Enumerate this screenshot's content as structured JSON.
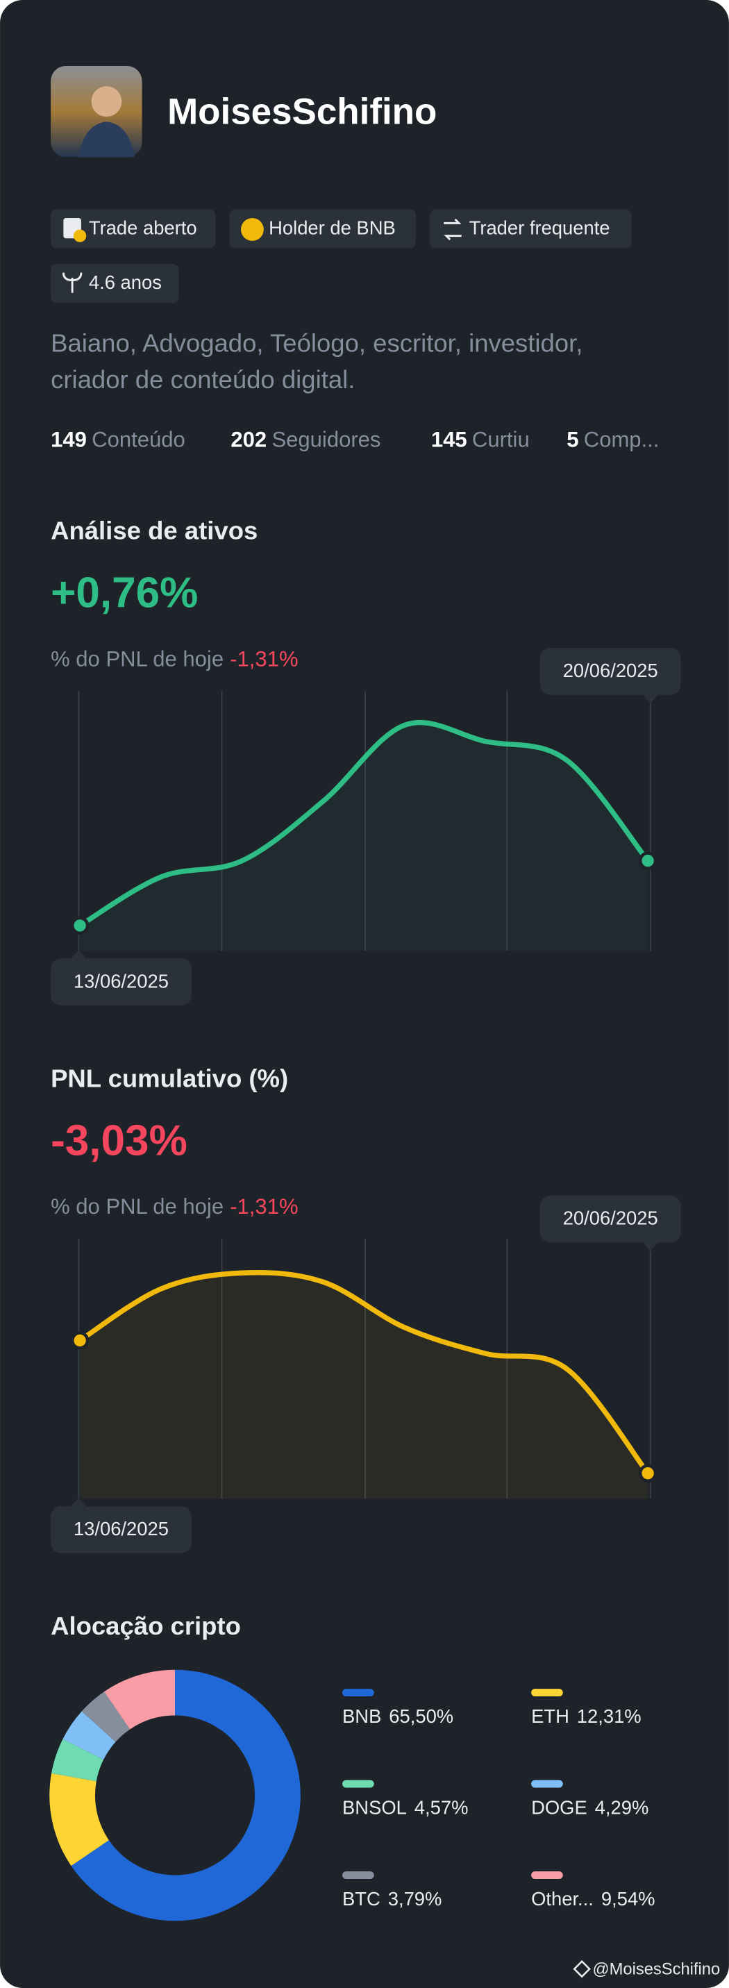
{
  "header": {
    "name": "MoisesSchifino"
  },
  "badges": [
    "Trade aberto",
    "Holder de BNB",
    "Trader frequente",
    "4.6 anos"
  ],
  "bio": [
    "Baiano, Advogado, Teólogo, escritor, investidor,",
    "criador de conteúdo digital."
  ],
  "stats": [
    {
      "value": "149",
      "label": "Conteúdo"
    },
    {
      "value": "202",
      "label": "Seguidores"
    },
    {
      "value": "145",
      "label": "Curtiu"
    },
    {
      "value": "5",
      "label": "Comp..."
    }
  ],
  "chart_data": [
    {
      "type": "line",
      "title": "Análise de ativos",
      "headline": "+0,76%",
      "headline_color": "#2ebd85",
      "subtitle": "% do PNL de hoje",
      "subtitle_value": "-1,31%",
      "x": [
        "13/06/2025",
        null,
        null,
        null,
        null,
        null,
        null,
        "20/06/2025"
      ],
      "series": [
        {
          "color": "#2ebd85",
          "values": [
            0,
            0.57,
            0.76,
            1.46,
            2.35,
            2.16,
            1.94,
            0.76
          ]
        }
      ]
    },
    {
      "type": "line",
      "title": "PNL cumulativo (%)",
      "headline": "-3,03%",
      "headline_color": "#f6465d",
      "subtitle": "% do PNL de hoje",
      "subtitle_value": "-1,31%",
      "x": [
        "13/06/2025",
        null,
        null,
        null,
        null,
        null,
        null,
        "20/06/2025"
      ],
      "series": [
        {
          "color": "#f0b90b",
          "values": [
            -0.69,
            0.22,
            0.5,
            0.34,
            -0.46,
            -0.92,
            -1.19,
            -3.03
          ]
        }
      ]
    },
    {
      "type": "donut",
      "title": "Alocação cripto",
      "categories": [
        "BNB",
        "ETH",
        "BNSOL",
        "DOGE",
        "BTC",
        "Other..."
      ],
      "values": [
        65.5,
        12.31,
        4.57,
        4.29,
        3.79,
        9.54
      ],
      "value_labels": [
        "65,50%",
        "12,31%",
        "4,57%",
        "4,29%",
        "3,79%",
        "9,54%"
      ],
      "colors": [
        "#2068d8",
        "#fcd535",
        "#6fdbb0",
        "#7fbff5",
        "#848e9c",
        "#f89ca6"
      ]
    }
  ],
  "footer": "@MoisesSchifino"
}
